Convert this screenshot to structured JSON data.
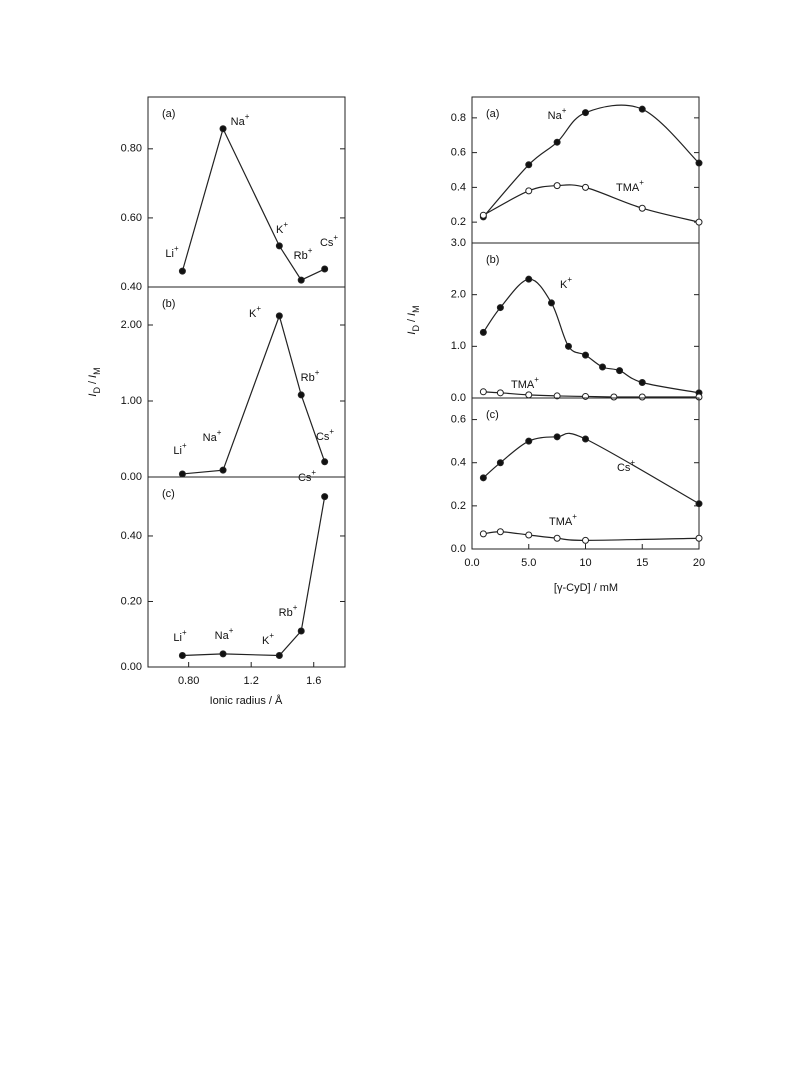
{
  "chart_data": [
    {
      "type": "line",
      "smooth": false,
      "x_label": "Ionic radius / Å",
      "y_label": [
        "I",
        "D",
        "/",
        "I",
        "M"
      ],
      "xlim": [
        0.54,
        1.8
      ],
      "xticks": [
        {
          "value": 0.8,
          "label": "0.80"
        },
        1.2,
        1.6
      ],
      "panels": [
        {
          "label": "(a)",
          "ylim": [
            0.4,
            0.95
          ],
          "yticks": [
            {
              "value": 0.4,
              "label": "0.40"
            },
            {
              "value": 0.6,
              "label": "0.60"
            },
            {
              "value": 0.8,
              "label": "0.80"
            }
          ],
          "series": [
            {
              "color": "#222",
              "marker_fill": "#111",
              "x": [
                0.76,
                1.02,
                1.38,
                1.52,
                1.67
              ],
              "values": [
                0.446,
                0.858,
                0.519,
                0.42,
                0.452
              ]
            }
          ],
          "annotations": [
            {
              "text": "Li",
              "sup": "+"
            },
            {
              "text": "Na",
              "sup": "+"
            },
            {
              "text": "K",
              "sup": "+"
            },
            {
              "text": "Rb",
              "sup": "+"
            },
            {
              "text": "Cs",
              "sup": "+"
            }
          ]
        },
        {
          "label": "(b)",
          "ylim": [
            0,
            2.5
          ],
          "yticks": [
            {
              "value": 0,
              "label": "0.00"
            },
            {
              "value": 1,
              "label": "1.00"
            },
            {
              "value": 2,
              "label": "2.00"
            }
          ],
          "series": [
            {
              "color": "#222",
              "marker_fill": "#111",
              "x": [
                0.76,
                1.02,
                1.38,
                1.52,
                1.67
              ],
              "values": [
                0.04,
                0.09,
                2.12,
                1.08,
                0.2
              ]
            }
          ],
          "annotations": [
            {
              "text": "Li",
              "sup": "+"
            },
            {
              "text": "Na",
              "sup": "+"
            },
            {
              "text": "K",
              "sup": "+"
            },
            {
              "text": "Rb",
              "sup": "+"
            },
            {
              "text": "Cs",
              "sup": "+"
            }
          ]
        },
        {
          "label": "(c)",
          "ylim": [
            0,
            0.58
          ],
          "yticks": [
            {
              "value": 0,
              "label": "0.00"
            },
            {
              "value": 0.2,
              "label": "0.20"
            },
            {
              "value": 0.4,
              "label": "0.40"
            }
          ],
          "series": [
            {
              "color": "#222",
              "marker_fill": "#111",
              "x": [
                0.76,
                1.02,
                1.38,
                1.52,
                1.67
              ],
              "values": [
                0.035,
                0.04,
                0.035,
                0.11,
                0.52
              ]
            }
          ],
          "annotations": [
            {
              "text": "Li",
              "sup": "+"
            },
            {
              "text": "Na",
              "sup": "+"
            },
            {
              "text": "K",
              "sup": "+"
            },
            {
              "text": "Rb",
              "sup": "+"
            },
            {
              "text": "Cs",
              "sup": "+"
            }
          ]
        }
      ]
    },
    {
      "type": "line",
      "smooth": true,
      "x_label": "[γ-CyD] / mM",
      "y_label": [
        "I",
        "D",
        "/",
        "I",
        "M"
      ],
      "xlim": [
        0,
        20
      ],
      "xticks": [
        {
          "value": 0,
          "label": "0.0"
        },
        {
          "value": 5,
          "label": "5.0"
        },
        10,
        15,
        20
      ],
      "panels": [
        {
          "label": "(a)",
          "ylim": [
            0.08,
            0.92
          ],
          "yticks": [
            0.2,
            0.4,
            0.6,
            0.8
          ],
          "series": [
            {
              "color": "#222",
              "marker_fill": "#111",
              "x": [
                1,
                5,
                7.5,
                10,
                15,
                20
              ],
              "values": [
                0.23,
                0.53,
                0.66,
                0.83,
                0.85,
                0.54
              ]
            },
            {
              "color": "#222",
              "marker_fill": "#fff",
              "x": [
                1,
                5,
                7.5,
                10,
                15,
                20
              ],
              "values": [
                0.24,
                0.38,
                0.41,
                0.4,
                0.28,
                0.2
              ]
            }
          ],
          "annotations": [
            {
              "text": "Na",
              "sup": "+"
            },
            {
              "text": "TMA",
              "sup": "+"
            }
          ]
        },
        {
          "label": "(b)",
          "ylim": [
            0,
            3
          ],
          "yticks": [
            {
              "value": 0,
              "label": "0.0"
            },
            {
              "value": 1,
              "label": "1.0"
            },
            {
              "value": 2,
              "label": "2.0"
            },
            {
              "value": 3,
              "label": "3.0"
            }
          ],
          "series": [
            {
              "color": "#222",
              "marker_fill": "#111",
              "x": [
                1,
                2.5,
                5,
                7,
                8.5,
                10,
                11.5,
                13,
                15,
                20
              ],
              "values": [
                1.27,
                1.75,
                2.3,
                1.84,
                1.0,
                0.83,
                0.6,
                0.53,
                0.3,
                0.1
              ]
            },
            {
              "color": "#222",
              "marker_fill": "#fff",
              "x": [
                1,
                2.5,
                5,
                7.5,
                10,
                12.5,
                15,
                20
              ],
              "values": [
                0.12,
                0.1,
                0.06,
                0.04,
                0.03,
                0.02,
                0.02,
                0.02
              ]
            }
          ],
          "annotations": [
            {
              "text": "K",
              "sup": "+"
            },
            {
              "text": "TMA",
              "sup": "+"
            }
          ]
        },
        {
          "label": "(c)",
          "ylim": [
            0,
            0.7
          ],
          "yticks": [
            {
              "value": 0,
              "label": "0.0"
            },
            0.2,
            0.4,
            0.6
          ],
          "series": [
            {
              "color": "#222",
              "marker_fill": "#111",
              "x": [
                1,
                2.5,
                5,
                7.5,
                10,
                20
              ],
              "values": [
                0.33,
                0.4,
                0.5,
                0.52,
                0.51,
                0.21
              ]
            },
            {
              "color": "#222",
              "marker_fill": "#fff",
              "x": [
                1,
                2.5,
                5,
                7.5,
                10,
                20
              ],
              "values": [
                0.07,
                0.08,
                0.065,
                0.05,
                0.04,
                0.05
              ]
            }
          ],
          "annotations": [
            {
              "text": "Cs",
              "sup": "+"
            },
            {
              "text": "TMA",
              "sup": "+"
            }
          ]
        }
      ]
    }
  ]
}
